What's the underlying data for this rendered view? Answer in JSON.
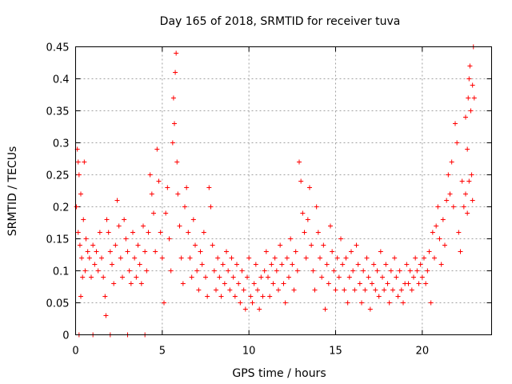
{
  "chart_data": {
    "type": "scatter",
    "title": "Day 165 of 2018, SRMTID for receiver tuva",
    "xlabel": "GPS time / hours",
    "ylabel": "SRMTID / TECUs",
    "xlim": [
      0,
      24
    ],
    "ylim": [
      0,
      0.45
    ],
    "xticks": [
      0,
      5,
      10,
      15,
      20
    ],
    "xtick_labels": [
      "0",
      "5",
      "10",
      "15",
      "20"
    ],
    "yticks": [
      0,
      0.05,
      0.1,
      0.15,
      0.2,
      0.25,
      0.3,
      0.35,
      0.4,
      0.45
    ],
    "ytick_labels": [
      "0",
      "0.05",
      "0.1",
      "0.15",
      "0.2",
      "0.25",
      "0.3",
      "0.35",
      "0.4",
      "0.45"
    ],
    "grid": true,
    "marker": "plus",
    "series": [
      {
        "name": "SRMTID",
        "color": "#ff0000",
        "points": [
          [
            0.05,
            0.2
          ],
          [
            0.1,
            0.29
          ],
          [
            0.15,
            0.27
          ],
          [
            0.2,
            0.25
          ],
          [
            0.3,
            0.22
          ],
          [
            0.15,
            0.16
          ],
          [
            0.25,
            0.14
          ],
          [
            0.35,
            0.12
          ],
          [
            0.4,
            0.09
          ],
          [
            0.3,
            0.06
          ],
          [
            0.45,
            0.18
          ],
          [
            0.5,
            0.27
          ],
          [
            0.6,
            0.15
          ],
          [
            0.55,
            0.1
          ],
          [
            0.7,
            0.13
          ],
          [
            0.8,
            0.12
          ],
          [
            0.9,
            0.09
          ],
          [
            1.0,
            0.14
          ],
          [
            1.1,
            0.11
          ],
          [
            1.2,
            0.13
          ],
          [
            1.3,
            0.1
          ],
          [
            1.4,
            0.16
          ],
          [
            1.5,
            0.12
          ],
          [
            1.6,
            0.09
          ],
          [
            1.7,
            0.06
          ],
          [
            1.75,
            0.03
          ],
          [
            1.8,
            0.18
          ],
          [
            1.9,
            0.16
          ],
          [
            2.0,
            0.13
          ],
          [
            2.1,
            0.11
          ],
          [
            2.2,
            0.08
          ],
          [
            2.3,
            0.14
          ],
          [
            2.4,
            0.21
          ],
          [
            2.5,
            0.17
          ],
          [
            2.6,
            0.12
          ],
          [
            2.7,
            0.09
          ],
          [
            2.8,
            0.18
          ],
          [
            2.9,
            0.15
          ],
          [
            3.0,
            0.13
          ],
          [
            3.1,
            0.1
          ],
          [
            3.2,
            0.08
          ],
          [
            3.3,
            0.16
          ],
          [
            3.4,
            0.12
          ],
          [
            3.5,
            0.09
          ],
          [
            3.6,
            0.14
          ],
          [
            3.7,
            0.11
          ],
          [
            3.8,
            0.08
          ],
          [
            3.9,
            0.17
          ],
          [
            4.0,
            0.13
          ],
          [
            4.1,
            0.1
          ],
          [
            4.2,
            0.16
          ],
          [
            4.3,
            0.25
          ],
          [
            4.4,
            0.22
          ],
          [
            4.5,
            0.19
          ],
          [
            4.6,
            0.13
          ],
          [
            4.7,
            0.29
          ],
          [
            4.8,
            0.24
          ],
          [
            4.9,
            0.16
          ],
          [
            5.0,
            0.12
          ],
          [
            5.1,
            0.05
          ],
          [
            5.2,
            0.19
          ],
          [
            5.3,
            0.23
          ],
          [
            5.4,
            0.15
          ],
          [
            5.5,
            0.1
          ],
          [
            5.6,
            0.3
          ],
          [
            5.65,
            0.37
          ],
          [
            5.7,
            0.33
          ],
          [
            5.75,
            0.41
          ],
          [
            5.8,
            0.44
          ],
          [
            5.85,
            0.27
          ],
          [
            5.9,
            0.22
          ],
          [
            6.0,
            0.17
          ],
          [
            6.1,
            0.12
          ],
          [
            6.2,
            0.08
          ],
          [
            6.3,
            0.2
          ],
          [
            6.4,
            0.23
          ],
          [
            6.5,
            0.16
          ],
          [
            6.6,
            0.12
          ],
          [
            6.7,
            0.09
          ],
          [
            6.8,
            0.18
          ],
          [
            6.9,
            0.14
          ],
          [
            7.0,
            0.1
          ],
          [
            7.1,
            0.07
          ],
          [
            7.2,
            0.13
          ],
          [
            7.3,
            0.11
          ],
          [
            7.4,
            0.16
          ],
          [
            7.5,
            0.09
          ],
          [
            7.6,
            0.06
          ],
          [
            7.7,
            0.23
          ],
          [
            7.8,
            0.2
          ],
          [
            7.9,
            0.14
          ],
          [
            8.0,
            0.1
          ],
          [
            8.1,
            0.07
          ],
          [
            8.2,
            0.12
          ],
          [
            8.3,
            0.09
          ],
          [
            8.4,
            0.06
          ],
          [
            8.5,
            0.11
          ],
          [
            8.6,
            0.08
          ],
          [
            8.7,
            0.13
          ],
          [
            8.8,
            0.1
          ],
          [
            8.9,
            0.07
          ],
          [
            9.0,
            0.12
          ],
          [
            9.1,
            0.09
          ],
          [
            9.2,
            0.06
          ],
          [
            9.3,
            0.11
          ],
          [
            9.4,
            0.08
          ],
          [
            9.5,
            0.05
          ],
          [
            9.6,
            0.1
          ],
          [
            9.7,
            0.07
          ],
          [
            9.8,
            0.04
          ],
          [
            9.9,
            0.09
          ],
          [
            10.0,
            0.12
          ],
          [
            10.1,
            0.06
          ],
          [
            10.2,
            0.05
          ],
          [
            10.3,
            0.08
          ],
          [
            10.4,
            0.11
          ],
          [
            10.5,
            0.07
          ],
          [
            10.6,
            0.04
          ],
          [
            10.7,
            0.09
          ],
          [
            10.8,
            0.06
          ],
          [
            10.9,
            0.1
          ],
          [
            11.0,
            0.13
          ],
          [
            11.1,
            0.09
          ],
          [
            11.2,
            0.06
          ],
          [
            11.3,
            0.11
          ],
          [
            11.4,
            0.08
          ],
          [
            11.5,
            0.12
          ],
          [
            11.6,
            0.1
          ],
          [
            11.7,
            0.07
          ],
          [
            11.8,
            0.14
          ],
          [
            11.9,
            0.11
          ],
          [
            12.0,
            0.08
          ],
          [
            12.1,
            0.05
          ],
          [
            12.2,
            0.12
          ],
          [
            12.3,
            0.09
          ],
          [
            12.4,
            0.15
          ],
          [
            12.5,
            0.11
          ],
          [
            12.6,
            0.07
          ],
          [
            12.7,
            0.13
          ],
          [
            12.8,
            0.1
          ],
          [
            12.9,
            0.27
          ],
          [
            13.0,
            0.24
          ],
          [
            13.1,
            0.19
          ],
          [
            13.2,
            0.16
          ],
          [
            13.3,
            0.12
          ],
          [
            13.4,
            0.18
          ],
          [
            13.5,
            0.23
          ],
          [
            13.6,
            0.14
          ],
          [
            13.7,
            0.1
          ],
          [
            13.8,
            0.07
          ],
          [
            13.9,
            0.2
          ],
          [
            14.0,
            0.16
          ],
          [
            14.1,
            0.12
          ],
          [
            14.2,
            0.09
          ],
          [
            14.3,
            0.14
          ],
          [
            14.4,
            0.04
          ],
          [
            14.5,
            0.11
          ],
          [
            14.6,
            0.08
          ],
          [
            14.7,
            0.17
          ],
          [
            14.8,
            0.13
          ],
          [
            14.9,
            0.1
          ],
          [
            15.0,
            0.07
          ],
          [
            15.1,
            0.12
          ],
          [
            15.2,
            0.09
          ],
          [
            15.3,
            0.15
          ],
          [
            15.4,
            0.11
          ],
          [
            15.5,
            0.07
          ],
          [
            15.6,
            0.12
          ],
          [
            15.7,
            0.05
          ],
          [
            15.8,
            0.09
          ],
          [
            15.9,
            0.13
          ],
          [
            16.0,
            0.1
          ],
          [
            16.1,
            0.07
          ],
          [
            16.2,
            0.14
          ],
          [
            16.3,
            0.11
          ],
          [
            16.4,
            0.08
          ],
          [
            16.5,
            0.05
          ],
          [
            16.6,
            0.1
          ],
          [
            16.7,
            0.07
          ],
          [
            16.8,
            0.12
          ],
          [
            16.9,
            0.09
          ],
          [
            17.0,
            0.04
          ],
          [
            17.1,
            0.08
          ],
          [
            17.2,
            0.11
          ],
          [
            17.3,
            0.07
          ],
          [
            17.4,
            0.1
          ],
          [
            17.5,
            0.06
          ],
          [
            17.6,
            0.13
          ],
          [
            17.7,
            0.09
          ],
          [
            17.8,
            0.07
          ],
          [
            17.9,
            0.11
          ],
          [
            18.0,
            0.08
          ],
          [
            18.1,
            0.05
          ],
          [
            18.2,
            0.1
          ],
          [
            18.3,
            0.07
          ],
          [
            18.4,
            0.12
          ],
          [
            18.5,
            0.09
          ],
          [
            18.6,
            0.06
          ],
          [
            18.7,
            0.1
          ],
          [
            18.8,
            0.07
          ],
          [
            18.9,
            0.05
          ],
          [
            19.0,
            0.08
          ],
          [
            19.1,
            0.11
          ],
          [
            19.2,
            0.08
          ],
          [
            19.3,
            0.1
          ],
          [
            19.4,
            0.07
          ],
          [
            19.5,
            0.09
          ],
          [
            19.6,
            0.12
          ],
          [
            19.7,
            0.1
          ],
          [
            19.8,
            0.08
          ],
          [
            19.9,
            0.11
          ],
          [
            20.0,
            0.09
          ],
          [
            20.1,
            0.12
          ],
          [
            20.2,
            0.08
          ],
          [
            20.3,
            0.1
          ],
          [
            20.4,
            0.13
          ],
          [
            20.5,
            0.05
          ],
          [
            20.6,
            0.16
          ],
          [
            20.7,
            0.12
          ],
          [
            20.8,
            0.17
          ],
          [
            20.9,
            0.2
          ],
          [
            21.0,
            0.15
          ],
          [
            21.1,
            0.11
          ],
          [
            21.2,
            0.18
          ],
          [
            21.3,
            0.14
          ],
          [
            21.4,
            0.21
          ],
          [
            21.5,
            0.25
          ],
          [
            21.6,
            0.22
          ],
          [
            21.7,
            0.27
          ],
          [
            21.8,
            0.2
          ],
          [
            21.9,
            0.33
          ],
          [
            22.0,
            0.3
          ],
          [
            22.1,
            0.16
          ],
          [
            22.2,
            0.13
          ],
          [
            22.3,
            0.24
          ],
          [
            22.4,
            0.2
          ],
          [
            22.5,
            0.34
          ],
          [
            22.6,
            0.29
          ],
          [
            22.65,
            0.37
          ],
          [
            22.7,
            0.4
          ],
          [
            22.75,
            0.42
          ],
          [
            22.8,
            0.35
          ],
          [
            22.85,
            0.25
          ],
          [
            22.9,
            0.39
          ],
          [
            22.95,
            0.45
          ],
          [
            23.0,
            0.37
          ],
          [
            22.5,
            0.22
          ],
          [
            22.6,
            0.19
          ],
          [
            22.7,
            0.24
          ],
          [
            22.9,
            0.21
          ],
          [
            0.2,
            0.0
          ],
          [
            1.0,
            0.0
          ],
          [
            2.0,
            0.0
          ],
          [
            3.0,
            0.0
          ],
          [
            4.0,
            0.0
          ]
        ]
      }
    ]
  }
}
